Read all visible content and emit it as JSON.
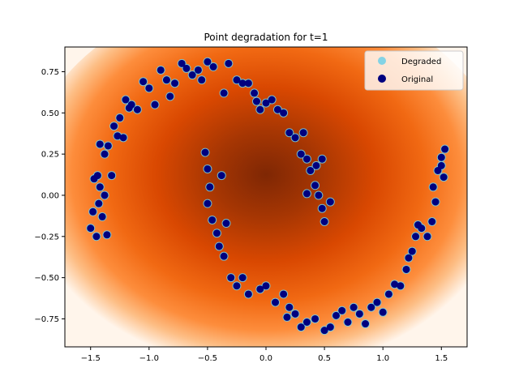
{
  "chart_data": {
    "type": "scatter",
    "title": "Point degradation for t=1",
    "xlabel": "",
    "ylabel": "",
    "xlim": [
      -1.72,
      1.72
    ],
    "ylim": [
      -0.92,
      0.9
    ],
    "x_ticks": [
      -1.5,
      -1.0,
      -0.5,
      0.0,
      0.5,
      1.0,
      1.5
    ],
    "x_tick_labels": [
      "−1.5",
      "−1.0",
      "−0.5",
      "0.0",
      "0.5",
      "1.0",
      "1.5"
    ],
    "y_ticks": [
      -0.75,
      -0.5,
      -0.25,
      0.0,
      0.25,
      0.5,
      0.75
    ],
    "y_tick_labels": [
      "−0.75",
      "−0.50",
      "−0.25",
      "0.00",
      "0.25",
      "0.50",
      "0.75"
    ],
    "grid": false,
    "legend_position": "top-right",
    "background": "density heatmap (white to dark orange-brown) centered near the origin",
    "colors": {
      "degraded": "#6fcfe8",
      "original": "#00007f",
      "density_low": "#fff5eb",
      "density_high": "#7f2704"
    },
    "series": [
      {
        "name": "Degraded",
        "points": [
          [
            -1.5,
            -0.2
          ],
          [
            -1.48,
            -0.1
          ],
          [
            -1.45,
            -0.25
          ],
          [
            -1.43,
            -0.05
          ],
          [
            -1.47,
            0.1
          ],
          [
            -1.44,
            0.12
          ],
          [
            -1.42,
            0.05
          ],
          [
            -1.4,
            -0.13
          ],
          [
            -1.38,
            0.0
          ],
          [
            -1.36,
            -0.24
          ],
          [
            -1.42,
            0.31
          ],
          [
            -1.38,
            0.25
          ],
          [
            -1.35,
            0.3
          ],
          [
            -1.32,
            0.12
          ],
          [
            -1.3,
            0.42
          ],
          [
            -1.27,
            0.36
          ],
          [
            -1.25,
            0.47
          ],
          [
            -1.22,
            0.35
          ],
          [
            -1.2,
            0.58
          ],
          [
            -1.17,
            0.53
          ],
          [
            -1.15,
            0.55
          ],
          [
            -1.1,
            0.52
          ],
          [
            -1.05,
            0.69
          ],
          [
            -1.0,
            0.65
          ],
          [
            -0.95,
            0.55
          ],
          [
            -0.9,
            0.76
          ],
          [
            -0.85,
            0.7
          ],
          [
            -0.82,
            0.6
          ],
          [
            -0.78,
            0.68
          ],
          [
            -0.72,
            0.8
          ],
          [
            -0.68,
            0.77
          ],
          [
            -0.63,
            0.73
          ],
          [
            -0.58,
            0.76
          ],
          [
            -0.55,
            0.7
          ],
          [
            -0.5,
            0.81
          ],
          [
            -0.45,
            0.78
          ],
          [
            -0.36,
            0.62
          ],
          [
            -0.32,
            0.8
          ],
          [
            -0.25,
            0.7
          ],
          [
            -0.2,
            0.68
          ],
          [
            -0.15,
            0.68
          ],
          [
            -0.1,
            0.62
          ],
          [
            -0.08,
            0.57
          ],
          [
            -0.05,
            0.52
          ],
          [
            0.0,
            0.56
          ],
          [
            0.05,
            0.58
          ],
          [
            0.1,
            0.52
          ],
          [
            0.15,
            0.5
          ],
          [
            0.2,
            0.38
          ],
          [
            0.25,
            0.35
          ],
          [
            0.3,
            0.25
          ],
          [
            0.32,
            0.38
          ],
          [
            0.35,
            0.22
          ],
          [
            0.38,
            0.15
          ],
          [
            0.42,
            0.06
          ],
          [
            0.45,
            0.0
          ],
          [
            0.48,
            -0.08
          ],
          [
            0.5,
            -0.16
          ],
          [
            0.55,
            -0.04
          ],
          [
            0.43,
            0.18
          ],
          [
            0.48,
            0.22
          ],
          [
            0.35,
            0.01
          ],
          [
            -0.52,
            0.26
          ],
          [
            -0.5,
            0.16
          ],
          [
            -0.48,
            0.05
          ],
          [
            -0.5,
            -0.05
          ],
          [
            -0.46,
            -0.15
          ],
          [
            -0.42,
            -0.23
          ],
          [
            -0.4,
            -0.31
          ],
          [
            -0.36,
            -0.37
          ],
          [
            -0.34,
            -0.17
          ],
          [
            -0.38,
            0.12
          ],
          [
            -0.3,
            -0.5
          ],
          [
            -0.25,
            -0.55
          ],
          [
            -0.2,
            -0.5
          ],
          [
            -0.15,
            -0.6
          ],
          [
            -0.05,
            -0.57
          ],
          [
            0.0,
            -0.55
          ],
          [
            0.08,
            -0.65
          ],
          [
            0.15,
            -0.6
          ],
          [
            0.18,
            -0.74
          ],
          [
            0.2,
            -0.68
          ],
          [
            0.25,
            -0.72
          ],
          [
            0.3,
            -0.8
          ],
          [
            0.35,
            -0.77
          ],
          [
            0.42,
            -0.75
          ],
          [
            0.5,
            -0.82
          ],
          [
            0.55,
            -0.8
          ],
          [
            0.6,
            -0.73
          ],
          [
            0.65,
            -0.7
          ],
          [
            0.7,
            -0.77
          ],
          [
            0.75,
            -0.68
          ],
          [
            0.8,
            -0.72
          ],
          [
            0.85,
            -0.78
          ],
          [
            0.9,
            -0.68
          ],
          [
            0.95,
            -0.65
          ],
          [
            1.0,
            -0.71
          ],
          [
            1.05,
            -0.6
          ],
          [
            1.1,
            -0.54
          ],
          [
            1.15,
            -0.55
          ],
          [
            1.2,
            -0.45
          ],
          [
            1.22,
            -0.38
          ],
          [
            1.25,
            -0.34
          ],
          [
            1.28,
            -0.25
          ],
          [
            1.3,
            -0.18
          ],
          [
            1.33,
            -0.2
          ],
          [
            1.38,
            -0.25
          ],
          [
            1.42,
            -0.16
          ],
          [
            1.45,
            -0.04
          ],
          [
            1.43,
            0.05
          ],
          [
            1.47,
            0.15
          ],
          [
            1.5,
            0.18
          ],
          [
            1.52,
            0.11
          ],
          [
            1.5,
            0.23
          ],
          [
            1.53,
            0.28
          ]
        ]
      },
      {
        "name": "Original",
        "points": [
          [
            -1.5,
            -0.2
          ],
          [
            -1.48,
            -0.1
          ],
          [
            -1.45,
            -0.25
          ],
          [
            -1.43,
            -0.05
          ],
          [
            -1.47,
            0.1
          ],
          [
            -1.44,
            0.12
          ],
          [
            -1.42,
            0.05
          ],
          [
            -1.4,
            -0.13
          ],
          [
            -1.38,
            0.0
          ],
          [
            -1.36,
            -0.24
          ],
          [
            -1.42,
            0.31
          ],
          [
            -1.38,
            0.25
          ],
          [
            -1.35,
            0.3
          ],
          [
            -1.32,
            0.12
          ],
          [
            -1.3,
            0.42
          ],
          [
            -1.27,
            0.36
          ],
          [
            -1.25,
            0.47
          ],
          [
            -1.22,
            0.35
          ],
          [
            -1.2,
            0.58
          ],
          [
            -1.17,
            0.53
          ],
          [
            -1.15,
            0.55
          ],
          [
            -1.1,
            0.52
          ],
          [
            -1.05,
            0.69
          ],
          [
            -1.0,
            0.65
          ],
          [
            -0.95,
            0.55
          ],
          [
            -0.9,
            0.76
          ],
          [
            -0.85,
            0.7
          ],
          [
            -0.82,
            0.6
          ],
          [
            -0.78,
            0.68
          ],
          [
            -0.72,
            0.8
          ],
          [
            -0.68,
            0.77
          ],
          [
            -0.63,
            0.73
          ],
          [
            -0.58,
            0.76
          ],
          [
            -0.55,
            0.7
          ],
          [
            -0.5,
            0.81
          ],
          [
            -0.45,
            0.78
          ],
          [
            -0.36,
            0.62
          ],
          [
            -0.32,
            0.8
          ],
          [
            -0.25,
            0.7
          ],
          [
            -0.2,
            0.68
          ],
          [
            -0.15,
            0.68
          ],
          [
            -0.1,
            0.62
          ],
          [
            -0.08,
            0.57
          ],
          [
            -0.05,
            0.52
          ],
          [
            0.0,
            0.56
          ],
          [
            0.05,
            0.58
          ],
          [
            0.1,
            0.52
          ],
          [
            0.15,
            0.5
          ],
          [
            0.2,
            0.38
          ],
          [
            0.25,
            0.35
          ],
          [
            0.3,
            0.25
          ],
          [
            0.32,
            0.38
          ],
          [
            0.35,
            0.22
          ],
          [
            0.38,
            0.15
          ],
          [
            0.42,
            0.06
          ],
          [
            0.45,
            0.0
          ],
          [
            0.48,
            -0.08
          ],
          [
            0.5,
            -0.16
          ],
          [
            0.55,
            -0.04
          ],
          [
            0.43,
            0.18
          ],
          [
            0.48,
            0.22
          ],
          [
            0.35,
            0.01
          ],
          [
            -0.52,
            0.26
          ],
          [
            -0.5,
            0.16
          ],
          [
            -0.48,
            0.05
          ],
          [
            -0.5,
            -0.05
          ],
          [
            -0.46,
            -0.15
          ],
          [
            -0.42,
            -0.23
          ],
          [
            -0.4,
            -0.31
          ],
          [
            -0.36,
            -0.37
          ],
          [
            -0.34,
            -0.17
          ],
          [
            -0.38,
            0.12
          ],
          [
            -0.3,
            -0.5
          ],
          [
            -0.25,
            -0.55
          ],
          [
            -0.2,
            -0.5
          ],
          [
            -0.15,
            -0.6
          ],
          [
            -0.05,
            -0.57
          ],
          [
            0.0,
            -0.55
          ],
          [
            0.08,
            -0.65
          ],
          [
            0.15,
            -0.6
          ],
          [
            0.18,
            -0.74
          ],
          [
            0.2,
            -0.68
          ],
          [
            0.25,
            -0.72
          ],
          [
            0.3,
            -0.8
          ],
          [
            0.35,
            -0.77
          ],
          [
            0.42,
            -0.75
          ],
          [
            0.5,
            -0.82
          ],
          [
            0.55,
            -0.8
          ],
          [
            0.6,
            -0.73
          ],
          [
            0.65,
            -0.7
          ],
          [
            0.7,
            -0.77
          ],
          [
            0.75,
            -0.68
          ],
          [
            0.8,
            -0.72
          ],
          [
            0.85,
            -0.78
          ],
          [
            0.9,
            -0.68
          ],
          [
            0.95,
            -0.65
          ],
          [
            1.0,
            -0.71
          ],
          [
            1.05,
            -0.6
          ],
          [
            1.1,
            -0.54
          ],
          [
            1.15,
            -0.55
          ],
          [
            1.2,
            -0.45
          ],
          [
            1.22,
            -0.38
          ],
          [
            1.25,
            -0.34
          ],
          [
            1.28,
            -0.25
          ],
          [
            1.3,
            -0.18
          ],
          [
            1.33,
            -0.2
          ],
          [
            1.38,
            -0.25
          ],
          [
            1.42,
            -0.16
          ],
          [
            1.45,
            -0.04
          ],
          [
            1.43,
            0.05
          ],
          [
            1.47,
            0.15
          ],
          [
            1.5,
            0.18
          ],
          [
            1.52,
            0.11
          ],
          [
            1.5,
            0.23
          ],
          [
            1.53,
            0.28
          ]
        ]
      }
    ]
  }
}
